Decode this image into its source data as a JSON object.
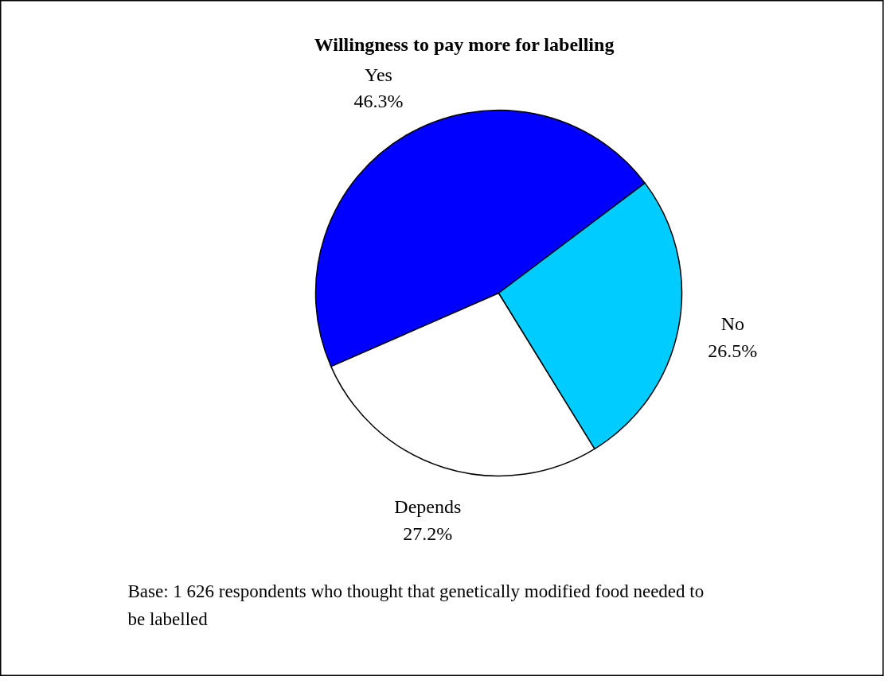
{
  "chart_data": {
    "type": "pie",
    "title": "Willingness to pay more for labelling",
    "categories": [
      "Yes",
      "Depends",
      "No"
    ],
    "values": [
      46.3,
      27.2,
      26.5
    ],
    "colors": [
      "#0000ff",
      "#ffffff",
      "#00ccff"
    ],
    "value_labels": [
      "46.3%",
      "27.2%",
      "26.5%"
    ],
    "annotations": [
      "Base: 1 626 respondents who thought that genetically modified food needed to be labelled"
    ]
  }
}
